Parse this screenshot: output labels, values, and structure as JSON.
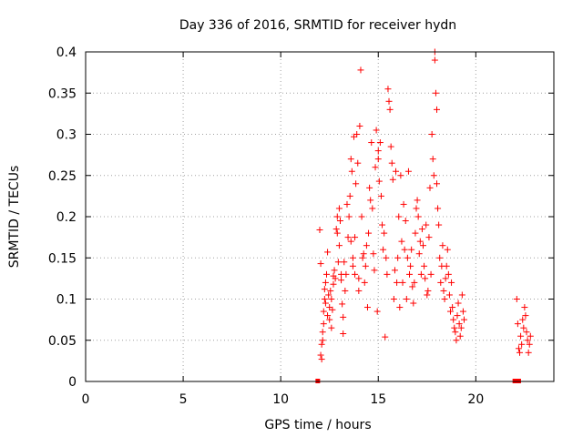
{
  "chart_data": {
    "type": "scatter",
    "title": "Day 336 of 2016, SRMTID for receiver hydn",
    "xlabel": "GPS time / hours",
    "ylabel": "SRMTID / TECUs",
    "xlim": [
      0,
      24
    ],
    "ylim": [
      0,
      0.4
    ],
    "xticks": [
      0,
      5,
      10,
      15,
      20
    ],
    "yticks": [
      0,
      0.05,
      0.1,
      0.15,
      0.2,
      0.25,
      0.3,
      0.35,
      0.4
    ],
    "xtick_labels": [
      "0",
      "5",
      "10",
      "15",
      "20"
    ],
    "ytick_labels": [
      "0",
      "0.05",
      "0.1",
      "0.15",
      "0.2",
      "0.25",
      "0.3",
      "0.35",
      "0.4"
    ],
    "grid": true,
    "marker": "+",
    "color": "#ff0000",
    "series": [
      {
        "name": "SRMTID",
        "points": [
          [
            11.9,
            0.0
          ],
          [
            12.0,
            0.184
          ],
          [
            12.05,
            0.143
          ],
          [
            12.05,
            0.032
          ],
          [
            12.1,
            0.045
          ],
          [
            12.1,
            0.027
          ],
          [
            12.15,
            0.06
          ],
          [
            12.15,
            0.05
          ],
          [
            12.2,
            0.085
          ],
          [
            12.2,
            0.07
          ],
          [
            12.25,
            0.1
          ],
          [
            12.25,
            0.112
          ],
          [
            12.3,
            0.095
          ],
          [
            12.3,
            0.12
          ],
          [
            12.35,
            0.13
          ],
          [
            12.4,
            0.08
          ],
          [
            12.4,
            0.157
          ],
          [
            12.45,
            0.105
          ],
          [
            12.5,
            0.09
          ],
          [
            12.5,
            0.075
          ],
          [
            12.55,
            0.11
          ],
          [
            12.6,
            0.065
          ],
          [
            12.6,
            0.1
          ],
          [
            12.65,
            0.087
          ],
          [
            12.7,
            0.118
          ],
          [
            12.7,
            0.128
          ],
          [
            12.75,
            0.135
          ],
          [
            12.8,
            0.125
          ],
          [
            12.85,
            0.185
          ],
          [
            12.9,
            0.2
          ],
          [
            12.9,
            0.18
          ],
          [
            12.95,
            0.145
          ],
          [
            13.0,
            0.165
          ],
          [
            13.0,
            0.21
          ],
          [
            13.05,
            0.195
          ],
          [
            13.1,
            0.123
          ],
          [
            13.1,
            0.13
          ],
          [
            13.15,
            0.094
          ],
          [
            13.2,
            0.078
          ],
          [
            13.2,
            0.058
          ],
          [
            13.25,
            0.145
          ],
          [
            13.3,
            0.11
          ],
          [
            13.35,
            0.13
          ],
          [
            13.4,
            0.215
          ],
          [
            13.45,
            0.175
          ],
          [
            13.5,
            0.2
          ],
          [
            13.55,
            0.225
          ],
          [
            13.6,
            0.17
          ],
          [
            13.6,
            0.27
          ],
          [
            13.65,
            0.255
          ],
          [
            13.7,
            0.14
          ],
          [
            13.7,
            0.15
          ],
          [
            13.75,
            0.297
          ],
          [
            13.8,
            0.13
          ],
          [
            13.8,
            0.175
          ],
          [
            13.85,
            0.24
          ],
          [
            13.9,
            0.3
          ],
          [
            13.95,
            0.265
          ],
          [
            14.0,
            0.125
          ],
          [
            14.0,
            0.11
          ],
          [
            14.05,
            0.31
          ],
          [
            14.1,
            0.378
          ],
          [
            14.15,
            0.2
          ],
          [
            14.2,
            0.15
          ],
          [
            14.25,
            0.155
          ],
          [
            14.3,
            0.12
          ],
          [
            14.35,
            0.14
          ],
          [
            14.4,
            0.165
          ],
          [
            14.45,
            0.09
          ],
          [
            14.5,
            0.18
          ],
          [
            14.55,
            0.235
          ],
          [
            14.6,
            0.22
          ],
          [
            14.65,
            0.29
          ],
          [
            14.7,
            0.21
          ],
          [
            14.75,
            0.155
          ],
          [
            14.8,
            0.135
          ],
          [
            14.85,
            0.26
          ],
          [
            14.9,
            0.305
          ],
          [
            14.95,
            0.085
          ],
          [
            15.0,
            0.28
          ],
          [
            15.0,
            0.27
          ],
          [
            15.05,
            0.243
          ],
          [
            15.1,
            0.29
          ],
          [
            15.15,
            0.225
          ],
          [
            15.2,
            0.19
          ],
          [
            15.25,
            0.16
          ],
          [
            15.3,
            0.18
          ],
          [
            15.35,
            0.054
          ],
          [
            15.4,
            0.15
          ],
          [
            15.45,
            0.13
          ],
          [
            15.5,
            0.355
          ],
          [
            15.55,
            0.34
          ],
          [
            15.6,
            0.33
          ],
          [
            15.65,
            0.285
          ],
          [
            15.7,
            0.265
          ],
          [
            15.75,
            0.245
          ],
          [
            15.8,
            0.1
          ],
          [
            15.85,
            0.135
          ],
          [
            15.9,
            0.255
          ],
          [
            15.95,
            0.12
          ],
          [
            16.0,
            0.15
          ],
          [
            16.05,
            0.2
          ],
          [
            16.1,
            0.09
          ],
          [
            16.15,
            0.25
          ],
          [
            16.2,
            0.17
          ],
          [
            16.25,
            0.12
          ],
          [
            16.3,
            0.215
          ],
          [
            16.35,
            0.16
          ],
          [
            16.4,
            0.195
          ],
          [
            16.45,
            0.1
          ],
          [
            16.5,
            0.15
          ],
          [
            16.55,
            0.255
          ],
          [
            16.6,
            0.13
          ],
          [
            16.65,
            0.14
          ],
          [
            16.7,
            0.16
          ],
          [
            16.75,
            0.115
          ],
          [
            16.8,
            0.095
          ],
          [
            16.85,
            0.12
          ],
          [
            16.9,
            0.18
          ],
          [
            16.95,
            0.21
          ],
          [
            17.0,
            0.22
          ],
          [
            17.05,
            0.2
          ],
          [
            17.1,
            0.155
          ],
          [
            17.15,
            0.17
          ],
          [
            17.2,
            0.13
          ],
          [
            17.25,
            0.185
          ],
          [
            17.3,
            0.165
          ],
          [
            17.35,
            0.14
          ],
          [
            17.4,
            0.125
          ],
          [
            17.45,
            0.19
          ],
          [
            17.5,
            0.105
          ],
          [
            17.55,
            0.11
          ],
          [
            17.6,
            0.175
          ],
          [
            17.65,
            0.235
          ],
          [
            17.7,
            0.13
          ],
          [
            17.75,
            0.3
          ],
          [
            17.8,
            0.27
          ],
          [
            17.85,
            0.25
          ],
          [
            17.9,
            0.4
          ],
          [
            17.9,
            0.39
          ],
          [
            17.95,
            0.35
          ],
          [
            18.0,
            0.33
          ],
          [
            18.0,
            0.24
          ],
          [
            18.05,
            0.21
          ],
          [
            18.1,
            0.19
          ],
          [
            18.15,
            0.15
          ],
          [
            18.2,
            0.12
          ],
          [
            18.25,
            0.14
          ],
          [
            18.3,
            0.165
          ],
          [
            18.35,
            0.11
          ],
          [
            18.4,
            0.1
          ],
          [
            18.45,
            0.125
          ],
          [
            18.5,
            0.14
          ],
          [
            18.55,
            0.16
          ],
          [
            18.6,
            0.13
          ],
          [
            18.65,
            0.105
          ],
          [
            18.7,
            0.085
          ],
          [
            18.75,
            0.12
          ],
          [
            18.8,
            0.09
          ],
          [
            18.85,
            0.075
          ],
          [
            18.9,
            0.065
          ],
          [
            18.95,
            0.06
          ],
          [
            19.0,
            0.05
          ],
          [
            19.05,
            0.08
          ],
          [
            19.1,
            0.095
          ],
          [
            19.15,
            0.07
          ],
          [
            19.2,
            0.055
          ],
          [
            19.25,
            0.065
          ],
          [
            19.3,
            0.105
          ],
          [
            19.35,
            0.085
          ],
          [
            19.4,
            0.075
          ],
          [
            22.0,
            0.0
          ],
          [
            22.2,
            0.0
          ],
          [
            22.1,
            0.1
          ],
          [
            22.15,
            0.07
          ],
          [
            22.2,
            0.04
          ],
          [
            22.25,
            0.035
          ],
          [
            22.3,
            0.055
          ],
          [
            22.35,
            0.045
          ],
          [
            22.4,
            0.075
          ],
          [
            22.45,
            0.065
          ],
          [
            22.5,
            0.09
          ],
          [
            22.55,
            0.08
          ],
          [
            22.6,
            0.06
          ],
          [
            22.65,
            0.05
          ],
          [
            22.7,
            0.035
          ],
          [
            22.75,
            0.045
          ],
          [
            22.8,
            0.055
          ]
        ]
      }
    ]
  }
}
